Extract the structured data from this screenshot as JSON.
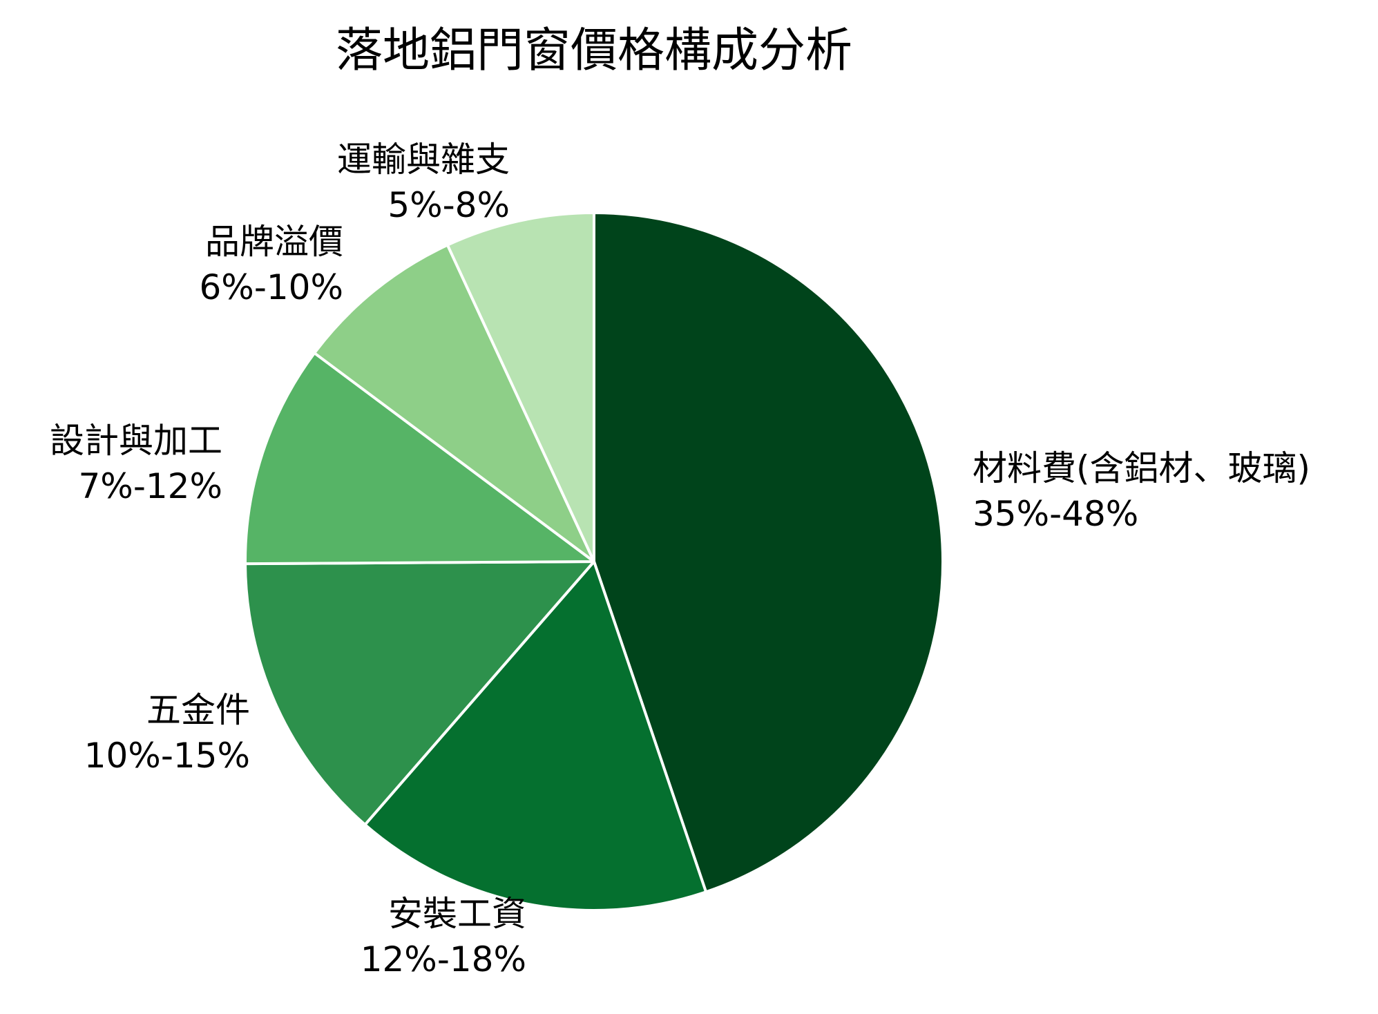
{
  "chart_data": {
    "type": "pie",
    "title": "落地鋁門窗價格構成分析",
    "start_angle": "12 o'clock",
    "direction": "clockwise",
    "slices": [
      {
        "label": "材料費(含鋁材、玻璃)",
        "range": "35%-48%",
        "share": 0.448,
        "color": "#00441b"
      },
      {
        "label": "安裝工資",
        "range": "12%-18%",
        "share": 0.166,
        "color": "#05702f"
      },
      {
        "label": "五金件",
        "range": "10%-15%",
        "share": 0.135,
        "color": "#2d914c"
      },
      {
        "label": "設計與加工",
        "range": "7%-12%",
        "share": 0.103,
        "color": "#56b466"
      },
      {
        "label": "品牌溢價",
        "range": "6%-10%",
        "share": 0.079,
        "color": "#8ecf88"
      },
      {
        "label": "運輸與雜支",
        "range": "5%-8%",
        "share": 0.069,
        "color": "#b8e3b2"
      }
    ],
    "legend": "none"
  }
}
